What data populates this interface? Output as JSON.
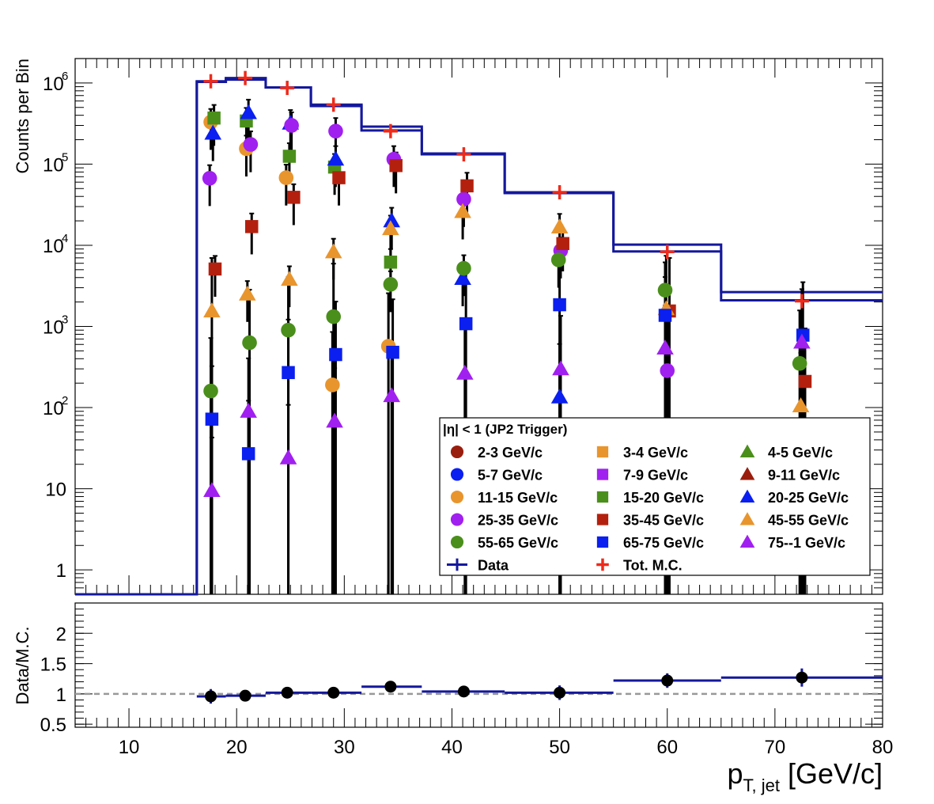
{
  "chart_data": [
    {
      "type": "scatter",
      "panel": "top",
      "ylabel": "Counts per Bin",
      "yscale": "log",
      "ylim": [
        0.5,
        2000000
      ],
      "xlim": [
        5,
        80
      ],
      "yticks": [
        {
          "value": 1,
          "label": "1",
          "exp": ""
        },
        {
          "value": 10,
          "label": "10",
          "exp": ""
        },
        {
          "value": 100,
          "label": "10",
          "exp": "2"
        },
        {
          "value": 1000,
          "label": "10",
          "exp": "3"
        },
        {
          "value": 10000,
          "label": "10",
          "exp": "4"
        },
        {
          "value": 100000,
          "label": "10",
          "exp": "5"
        },
        {
          "value": 1000000,
          "label": "10",
          "exp": "6"
        }
      ],
      "legend": {
        "header": "|η| < 1 (JP2 Trigger)",
        "placement": "lower-right"
      },
      "data_histogram": {
        "name": "Data",
        "color": "#14189c",
        "edges": [
          5,
          16.3,
          19,
          22.7,
          26.9,
          31.6,
          37.2,
          44.9,
          55,
          65,
          80
        ],
        "values": [
          0.5,
          1030000,
          1100000,
          880000,
          520000,
          260000,
          132000,
          44000,
          8400,
          2100
        ]
      },
      "mc_histogram": {
        "color": "#14189c",
        "values": [
          0.5,
          1050000,
          1150000,
          880000,
          540000,
          290000,
          135000,
          45000,
          10200,
          2650
        ]
      },
      "series": [
        {
          "name": "2-3 GeV/c",
          "marker": "circle",
          "color": "#9a1e0e",
          "points": []
        },
        {
          "name": "3-4 GeV/c",
          "marker": "square",
          "color": "#e8952e",
          "points": []
        },
        {
          "name": "4-5 GeV/c",
          "marker": "triangle",
          "color": "#4a8f1b",
          "points": []
        },
        {
          "name": "5-7 GeV/c",
          "marker": "circle",
          "color": "#0a1ff0",
          "points": []
        },
        {
          "name": "7-9 GeV/c",
          "marker": "square",
          "color": "#a020f0",
          "points": []
        },
        {
          "name": "9-11 GeV/c",
          "marker": "triangle",
          "color": "#9a1e0e",
          "points": []
        },
        {
          "name": "11-15 GeV/c",
          "marker": "circle",
          "color": "#e8952e",
          "points": [
            {
              "x": 17.6,
              "y": 330000
            },
            {
              "x": 20.9,
              "y": 155000
            },
            {
              "x": 24.6,
              "y": 68000
            },
            {
              "x": 28.9,
              "y": 190
            },
            {
              "x": 34.1,
              "y": 570
            }
          ]
        },
        {
          "name": "15-20 GeV/c",
          "marker": "square",
          "color": "#4a8f1b",
          "points": [
            {
              "x": 17.9,
              "y": 370000
            },
            {
              "x": 20.9,
              "y": 340000
            },
            {
              "x": 24.9,
              "y": 125000
            },
            {
              "x": 29.1,
              "y": 92000
            },
            {
              "x": 34.3,
              "y": 6200
            }
          ]
        },
        {
          "name": "20-25 GeV/c",
          "marker": "triangle",
          "color": "#0a1ff0",
          "points": [
            {
              "x": 17.8,
              "y": 240000
            },
            {
              "x": 21.1,
              "y": 430000
            },
            {
              "x": 25.0,
              "y": 320000
            },
            {
              "x": 29.2,
              "y": 115000
            },
            {
              "x": 34.4,
              "y": 20000
            },
            {
              "x": 41.0,
              "y": 3900
            },
            {
              "x": 50.0,
              "y": 135
            }
          ]
        },
        {
          "name": "25-35 GeV/c",
          "marker": "circle",
          "color": "#a020f0",
          "points": [
            {
              "x": 17.5,
              "y": 67000
            },
            {
              "x": 21.3,
              "y": 175000
            },
            {
              "x": 25.1,
              "y": 300000
            },
            {
              "x": 29.2,
              "y": 255000
            },
            {
              "x": 34.6,
              "y": 115000
            },
            {
              "x": 41.1,
              "y": 37000
            },
            {
              "x": 50.1,
              "y": 8600
            },
            {
              "x": 60.0,
              "y": 285
            }
          ]
        },
        {
          "name": "35-45 GeV/c",
          "marker": "square",
          "color": "#b4200e",
          "points": [
            {
              "x": 18.0,
              "y": 5100
            },
            {
              "x": 21.4,
              "y": 17000
            },
            {
              "x": 25.3,
              "y": 39000
            },
            {
              "x": 29.5,
              "y": 68000
            },
            {
              "x": 34.8,
              "y": 96000
            },
            {
              "x": 41.4,
              "y": 54000
            },
            {
              "x": 50.3,
              "y": 10500
            },
            {
              "x": 60.2,
              "y": 1550
            },
            {
              "x": 72.8,
              "y": 210
            }
          ]
        },
        {
          "name": "45-55 GeV/c",
          "marker": "triangle",
          "color": "#e8952e",
          "points": [
            {
              "x": 17.7,
              "y": 1550
            },
            {
              "x": 21.0,
              "y": 2500
            },
            {
              "x": 24.9,
              "y": 3800
            },
            {
              "x": 29.0,
              "y": 8300
            },
            {
              "x": 34.3,
              "y": 16000
            },
            {
              "x": 41.0,
              "y": 26000
            },
            {
              "x": 50.0,
              "y": 16800
            },
            {
              "x": 59.9,
              "y": 1650
            },
            {
              "x": 72.4,
              "y": 105
            }
          ]
        },
        {
          "name": "55-65 GeV/c",
          "marker": "circle",
          "color": "#4a8f1b",
          "points": [
            {
              "x": 17.6,
              "y": 160
            },
            {
              "x": 21.2,
              "y": 630
            },
            {
              "x": 24.8,
              "y": 900
            },
            {
              "x": 29.0,
              "y": 1320
            },
            {
              "x": 34.3,
              "y": 3300
            },
            {
              "x": 41.1,
              "y": 5200
            },
            {
              "x": 49.9,
              "y": 6600
            },
            {
              "x": 59.8,
              "y": 2800
            },
            {
              "x": 72.3,
              "y": 350
            }
          ]
        },
        {
          "name": "65-75 GeV/c",
          "marker": "square",
          "color": "#0a1ff0",
          "points": [
            {
              "x": 17.7,
              "y": 72
            },
            {
              "x": 21.1,
              "y": 27
            },
            {
              "x": 24.8,
              "y": 270
            },
            {
              "x": 29.2,
              "y": 450
            },
            {
              "x": 34.5,
              "y": 480
            },
            {
              "x": 41.3,
              "y": 1080
            },
            {
              "x": 50.0,
              "y": 1850
            },
            {
              "x": 59.8,
              "y": 1370
            },
            {
              "x": 72.6,
              "y": 780
            }
          ]
        },
        {
          "name": "75--1 GeV/c",
          "marker": "triangle",
          "color": "#a020f0",
          "points": [
            {
              "x": 17.7,
              "y": 9.5
            },
            {
              "x": 21.1,
              "y": 90
            },
            {
              "x": 24.8,
              "y": 24
            },
            {
              "x": 29.1,
              "y": 68
            },
            {
              "x": 34.4,
              "y": 140
            },
            {
              "x": 41.2,
              "y": 265
            },
            {
              "x": 50.1,
              "y": 300
            },
            {
              "x": 59.8,
              "y": 540
            },
            {
              "x": 72.5,
              "y": 640
            }
          ]
        },
        {
          "name": "Data",
          "marker": "line",
          "color": "#14189c",
          "points": []
        },
        {
          "name": "Tot. M.C.",
          "marker": "cross",
          "color": "#ee2a1a",
          "points": [
            {
              "x": 17.6,
              "y": 1050000
            },
            {
              "x": 20.8,
              "y": 1150000
            },
            {
              "x": 24.7,
              "y": 870000
            },
            {
              "x": 29.0,
              "y": 540000
            },
            {
              "x": 34.3,
              "y": 255000
            },
            {
              "x": 41.1,
              "y": 132000
            },
            {
              "x": 50.0,
              "y": 45000
            },
            {
              "x": 60.0,
              "y": 8300
            },
            {
              "x": 72.5,
              "y": 2050
            }
          ]
        }
      ]
    },
    {
      "type": "scatter",
      "panel": "bottom",
      "xlabel": "p",
      "xlabel_sub": "T, jet",
      "xlabel_unit": "[GeV/c]",
      "ylabel": "Data/M.C.",
      "ylim": [
        0.45,
        2.5
      ],
      "xlim": [
        5,
        80
      ],
      "yticks": [
        {
          "value": 0.5,
          "label": "0.5"
        },
        {
          "value": 1,
          "label": "1"
        },
        {
          "value": 1.5,
          "label": "1.5"
        },
        {
          "value": 2,
          "label": "2"
        }
      ],
      "xticks": [
        {
          "value": 10,
          "label": "10"
        },
        {
          "value": 20,
          "label": "20"
        },
        {
          "value": 30,
          "label": "30"
        },
        {
          "value": 40,
          "label": "40"
        },
        {
          "value": 50,
          "label": "50"
        },
        {
          "value": 60,
          "label": "60"
        },
        {
          "value": 70,
          "label": "70"
        },
        {
          "value": 80,
          "label": "80"
        }
      ],
      "reference_line": 1,
      "series": [
        {
          "name": "Data/M.C.",
          "color": "#000000",
          "line_color": "#14189c",
          "points": [
            {
              "x": 17.6,
              "y": 0.96,
              "xlo": 16.3,
              "xhi": 19.0,
              "err": 0.12
            },
            {
              "x": 20.8,
              "y": 0.97,
              "xlo": 19.0,
              "xhi": 22.7,
              "err": 0.04
            },
            {
              "x": 24.7,
              "y": 1.02,
              "xlo": 22.7,
              "xhi": 26.9,
              "err": 0.04
            },
            {
              "x": 29.0,
              "y": 1.02,
              "xlo": 26.9,
              "xhi": 31.6,
              "err": 0.04
            },
            {
              "x": 34.3,
              "y": 1.12,
              "xlo": 31.6,
              "xhi": 37.2,
              "err": 0.04
            },
            {
              "x": 41.1,
              "y": 1.04,
              "xlo": 37.2,
              "xhi": 44.9,
              "err": 0.04
            },
            {
              "x": 50.0,
              "y": 1.02,
              "xlo": 44.9,
              "xhi": 55.0,
              "err": 0.12
            },
            {
              "x": 60.0,
              "y": 1.22,
              "xlo": 55.0,
              "xhi": 65.0,
              "err": 0.12
            },
            {
              "x": 72.5,
              "y": 1.27,
              "xlo": 65.0,
              "xhi": 80.0,
              "err": 0.15
            }
          ]
        }
      ]
    }
  ]
}
